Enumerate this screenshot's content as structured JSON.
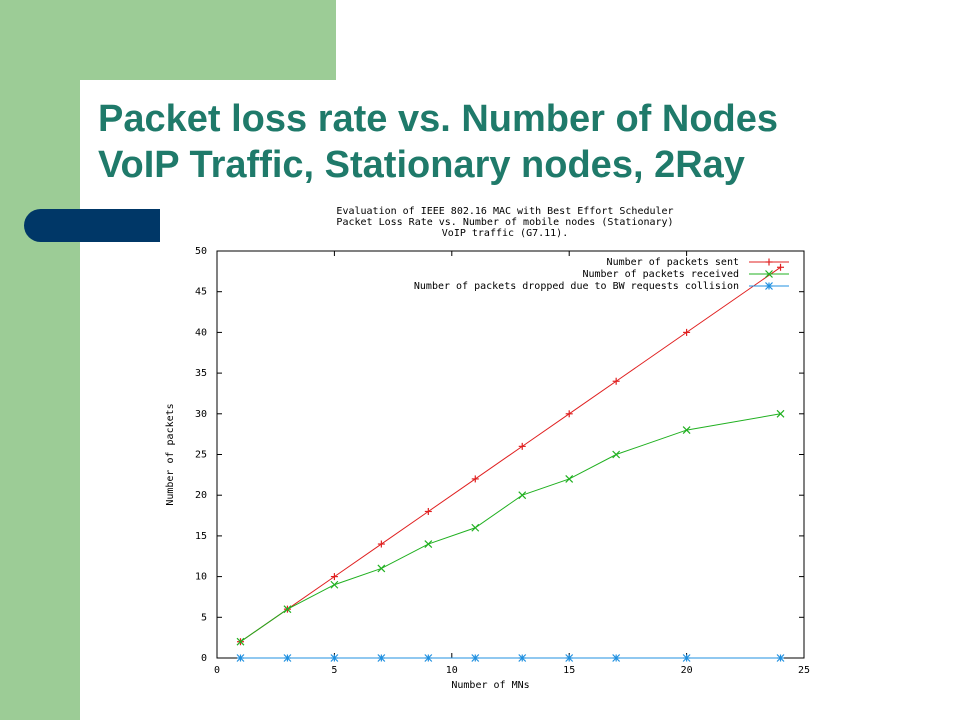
{
  "slide": {
    "title_line1": "Packet loss rate vs. Number of Nodes",
    "title_line2": "VoIP Traffic, Stationary nodes, 2Ray"
  },
  "colors": {
    "background_band": "#9ccc96",
    "accent_bar": "#003767",
    "title_text": "#1f7a6a"
  },
  "chart_data": {
    "type": "line",
    "title_lines": [
      "Evaluation of IEEE 802.16 MAC with Best Effort Scheduler",
      "Packet Loss Rate vs. Number of mobile nodes (Stationary)",
      "VoIP traffic (G7.11)."
    ],
    "xlabel": "Number of MNs",
    "ylabel": "Number of packets",
    "xlim": [
      0,
      25
    ],
    "ylim": [
      0,
      50
    ],
    "xticks": [
      0,
      5,
      10,
      15,
      20,
      25
    ],
    "yticks": [
      0,
      5,
      10,
      15,
      20,
      25,
      30,
      35,
      40,
      45,
      50
    ],
    "grid": false,
    "legend_position": "top-right",
    "series": [
      {
        "name": "Number of packets sent",
        "color": "#e02020",
        "marker": "plus",
        "x": [
          1,
          3,
          5,
          7,
          9,
          11,
          13,
          15,
          17,
          20,
          24
        ],
        "y": [
          2,
          6,
          10,
          14,
          18,
          22,
          26,
          30,
          34,
          40,
          48
        ]
      },
      {
        "name": "Number of packets received",
        "color": "#20b020",
        "marker": "cross",
        "x": [
          1,
          3,
          5,
          7,
          9,
          11,
          13,
          15,
          17,
          20,
          24
        ],
        "y": [
          2,
          6,
          9,
          11,
          14,
          16,
          20,
          22,
          25,
          28,
          30
        ]
      },
      {
        "name": "Number of packets dropped due to BW requests collision",
        "color": "#2090e0",
        "marker": "star",
        "x": [
          1,
          3,
          5,
          7,
          9,
          11,
          13,
          15,
          17,
          20,
          24
        ],
        "y": [
          0,
          0,
          0,
          0,
          0,
          0,
          0,
          0,
          0,
          0,
          0
        ]
      }
    ]
  }
}
